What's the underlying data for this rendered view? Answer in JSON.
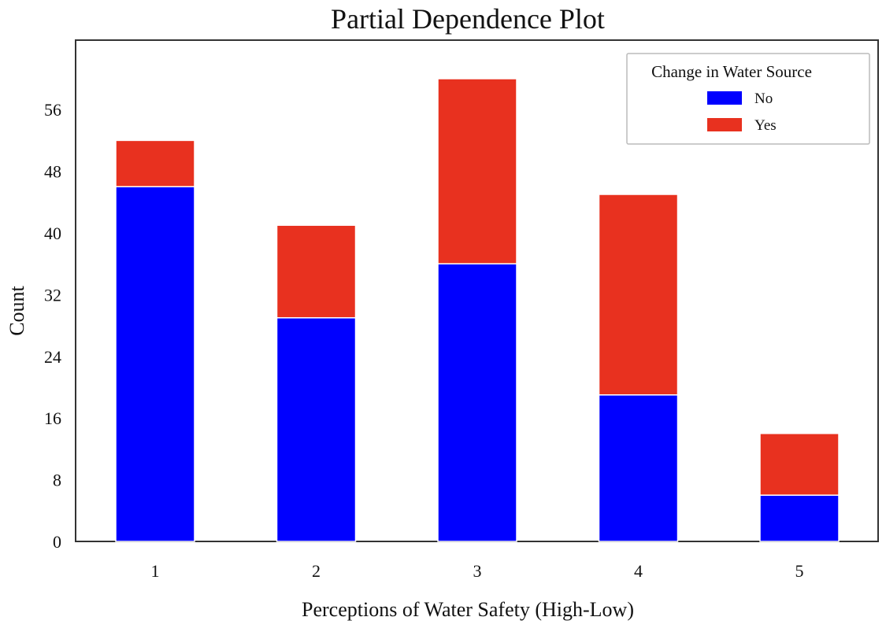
{
  "chart_data": {
    "type": "bar",
    "stacked": true,
    "title": "Partial Dependence Plot",
    "xlabel": "Perceptions of Water Safety (High-Low)",
    "ylabel": "Count",
    "categories": [
      "1",
      "2",
      "3",
      "4",
      "5"
    ],
    "series": [
      {
        "name": "No",
        "color": "#0000ff",
        "values": [
          46,
          29,
          36,
          19,
          6
        ]
      },
      {
        "name": "Yes",
        "color": "#e8311f",
        "values": [
          6,
          12,
          24,
          26,
          8
        ]
      }
    ],
    "totals": [
      52,
      41,
      60,
      45,
      14
    ],
    "yticks": [
      0,
      8,
      16,
      24,
      32,
      40,
      48,
      56
    ],
    "ylim": [
      0,
      63
    ],
    "grid": false,
    "legend": {
      "title": "Change in Water Source",
      "position": "top-right"
    }
  }
}
